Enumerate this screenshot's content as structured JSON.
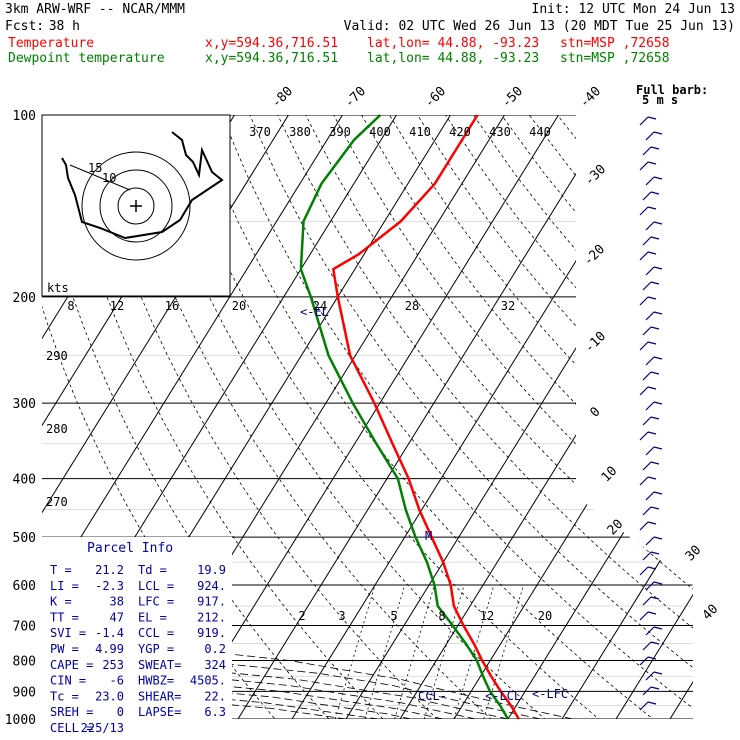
{
  "header": {
    "model": "3km ARW-WRF -- NCAR/MMM",
    "init": "Init: 12 UTC Mon 24 Jun 13",
    "fcst_label": "Fcst:",
    "fcst_value": "38 h",
    "valid": "Valid: 02 UTC Wed 26 Jun 13 (20 MDT Tue 25 Jun 13)",
    "temp_label": "Temperature",
    "dew_label": "Dewpoint temperature",
    "xy": "x,y=594.36,716.51",
    "latlon": "lat,lon= 44.88, -93.23",
    "stn": "stn=MSP ,72658"
  },
  "barb_legend": {
    "title": "Full barb:",
    "value": "5 m s"
  },
  "hodograph": {
    "kts_label": "kts",
    "ring_labels": [
      "15",
      "10"
    ]
  },
  "chart_data": {
    "type": "line",
    "title": "",
    "pressure_axis": {
      "ticks": [
        100,
        200,
        300,
        400,
        500,
        600,
        700,
        800,
        900,
        1000
      ],
      "scale": "log"
    },
    "skewed_temperature_labels": [
      "-80",
      "-70",
      "-60",
      "-50",
      "-40",
      "-30",
      "-20",
      "-10",
      "0",
      "10",
      "20",
      "30",
      "40"
    ],
    "theta_labels": [
      "370",
      "380",
      "390",
      "400",
      "410",
      "420",
      "430",
      "440"
    ],
    "theta_left_labels": [
      "290",
      "280",
      "270"
    ],
    "mixing_ratio_top_labels": [
      "8",
      "12",
      "16",
      "20",
      "24",
      "28",
      "32"
    ],
    "mixing_ratio_bottom_labels": [
      "2",
      "3",
      "5",
      "8",
      "12",
      "20"
    ],
    "series": [
      {
        "name": "Temperature",
        "color": "#ff0000",
        "points": [
          [
            1000,
            22
          ],
          [
            950,
            19
          ],
          [
            900,
            15.5
          ],
          [
            850,
            12
          ],
          [
            800,
            8.5
          ],
          [
            750,
            5
          ],
          [
            700,
            1
          ],
          [
            650,
            -3
          ],
          [
            600,
            -6
          ],
          [
            550,
            -10
          ],
          [
            500,
            -15
          ],
          [
            450,
            -20.5
          ],
          [
            400,
            -26
          ],
          [
            350,
            -33
          ],
          [
            300,
            -41
          ],
          [
            250,
            -51
          ],
          [
            200,
            -60
          ],
          [
            180,
            -64
          ],
          [
            170,
            -61
          ],
          [
            150,
            -57
          ],
          [
            130,
            -55
          ],
          [
            110,
            -55
          ],
          [
            100,
            -55
          ]
        ]
      },
      {
        "name": "Dewpoint temperature",
        "color": "#008000",
        "points": [
          [
            1000,
            20
          ],
          [
            950,
            17
          ],
          [
            900,
            13.5
          ],
          [
            850,
            10.5
          ],
          [
            800,
            7.5
          ],
          [
            750,
            3.5
          ],
          [
            700,
            -1
          ],
          [
            650,
            -6
          ],
          [
            600,
            -9
          ],
          [
            550,
            -13
          ],
          [
            500,
            -18
          ],
          [
            450,
            -23
          ],
          [
            400,
            -28
          ],
          [
            350,
            -36
          ],
          [
            300,
            -45
          ],
          [
            250,
            -55
          ],
          [
            200,
            -65
          ],
          [
            180,
            -70
          ],
          [
            150,
            -75
          ],
          [
            130,
            -76
          ],
          [
            110,
            -75
          ],
          [
            100,
            -73
          ]
        ]
      }
    ],
    "level_labels": [
      "<-EL",
      "M",
      "CCL-",
      "<-LCL",
      "<-LFC"
    ]
  },
  "parcel_info": {
    "title": "Parcel Info",
    "rows": [
      [
        "T  =",
        "21.2",
        "Td =",
        "19.9"
      ],
      [
        "LI =",
        "-2.3",
        "LCL =",
        "924."
      ],
      [
        "K  =",
        "38",
        "LFC =",
        "917."
      ],
      [
        "TT =",
        "47",
        "EL =",
        "212."
      ],
      [
        "SVI =",
        "-1.4",
        "CCL =",
        "919."
      ],
      [
        "PW =",
        "4.99",
        "YGP =",
        "0.2"
      ],
      [
        "CAPE =",
        "253",
        "SWEAT=",
        "324"
      ],
      [
        "CIN =",
        "-6",
        "HWBZ=",
        "4505."
      ],
      [
        "Tc =",
        "23.0",
        "SHEAR=",
        "22."
      ],
      [
        "SREH =",
        "0",
        "LAPSE=",
        "6.3"
      ],
      [
        "CELL =",
        "225/13",
        "",
        ""
      ]
    ]
  }
}
